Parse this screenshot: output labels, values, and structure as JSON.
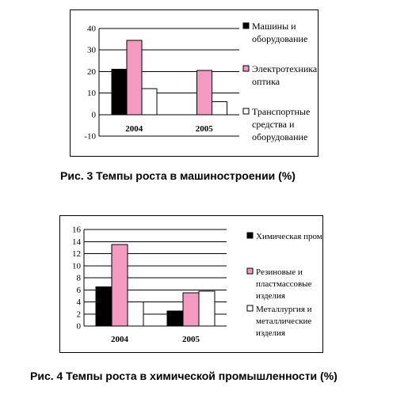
{
  "chart_data": [
    {
      "type": "bar",
      "categories": [
        "2004",
        "2005"
      ],
      "series": [
        {
          "name": "Машины и оборудование",
          "values": [
            21,
            null
          ]
        },
        {
          "name": "Электротехника и оптика",
          "values": [
            34.5,
            20.5
          ]
        },
        {
          "name": "Транспортные средства и оборудование",
          "values": [
            12,
            6
          ]
        }
      ],
      "legend_lines": [
        [
          "Машины и",
          "оборудование"
        ],
        [
          "Электротехника и",
          "оптика"
        ],
        [
          "Транспортные",
          "средства и",
          "оборудование"
        ]
      ],
      "colors": [
        "#000000",
        "#f49ac1",
        "#ffffff"
      ],
      "ylim": [
        -10,
        40
      ],
      "yticks": [
        -10,
        0,
        10,
        20,
        30,
        40
      ],
      "grid": true,
      "legend_position": "right",
      "caption": "Рис. 3  Темпы роста в машиностроении (%)"
    },
    {
      "type": "bar",
      "categories": [
        "2004",
        "2005"
      ],
      "series": [
        {
          "name": "Химическая пром-ть",
          "values": [
            6.5,
            2.5
          ]
        },
        {
          "name": "Резиновые и пластмассовые изделия",
          "values": [
            13.5,
            5.5
          ]
        },
        {
          "name": "Металлургия и металлические изделия",
          "values": [
            4,
            5.8
          ]
        }
      ],
      "legend_lines": [
        [
          "Химическая пром-ть"
        ],
        [
          "Резиновые и",
          "пластмассовые",
          "изделия"
        ],
        [
          "Металлургия и",
          "металлические",
          "изделия"
        ]
      ],
      "colors": [
        "#000000",
        "#f49ac1",
        "#ffffff"
      ],
      "ylim": [
        0,
        16
      ],
      "yticks": [
        0,
        2,
        4,
        6,
        8,
        10,
        12,
        14,
        16
      ],
      "grid": true,
      "legend_position": "right",
      "caption": "Рис. 4  Темпы роста в химической промышленности (%)"
    }
  ]
}
